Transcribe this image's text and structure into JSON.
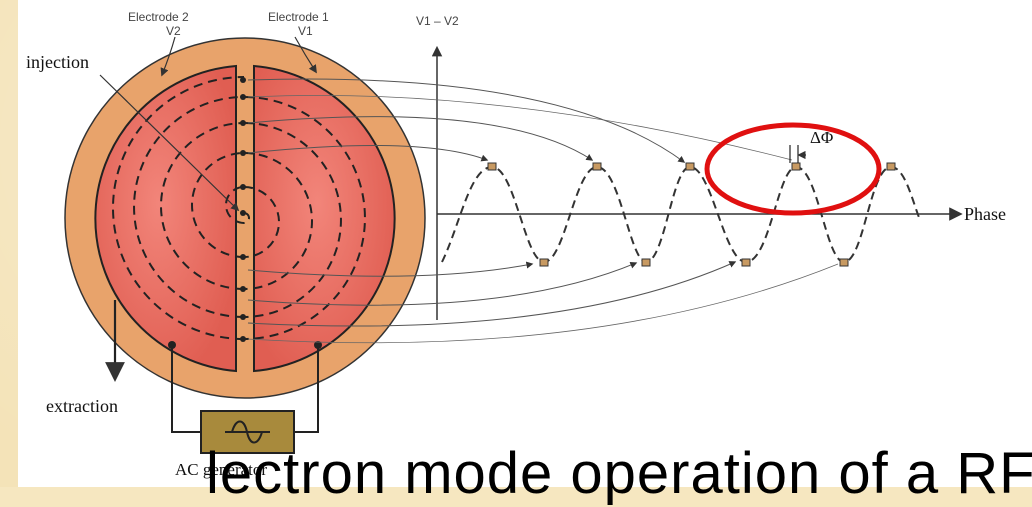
{
  "labels": {
    "electrode2": "Electrode 2",
    "v2": "V2",
    "electrode1": "Electrode 1",
    "v1": "V1",
    "axis_title": "V1 – V2",
    "injection": "injection",
    "extraction": "extraction",
    "ac_generator": "AC generator",
    "phase": "Phase",
    "delta_phi": "ΔΦ"
  },
  "caption": "lectron mode operation of a RF",
  "colors": {
    "disc_outer": "#e8a36b",
    "dee": "#e9675a",
    "highlight_ring": "#e01010",
    "ac_box": "#a88a3c"
  }
}
